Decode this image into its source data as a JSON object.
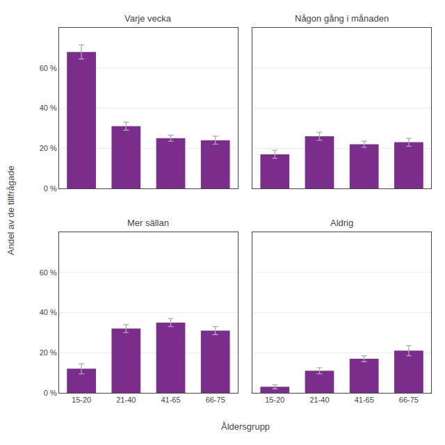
{
  "chart_data": [
    {
      "type": "bar",
      "title": "Varje vecka",
      "categories": [
        "15-20",
        "21-40",
        "41-65",
        "66-75"
      ],
      "values": [
        68,
        31,
        25,
        24
      ],
      "errors": [
        3.5,
        2.0,
        1.5,
        2.0
      ],
      "color": "#7B2D8B",
      "ylim": [
        0,
        80
      ],
      "yticks": [
        {
          "value": 0,
          "label": "0 %"
        },
        {
          "value": 20,
          "label": "20 %"
        },
        {
          "value": 40,
          "label": "40 %"
        },
        {
          "value": 60,
          "label": "60 %"
        }
      ],
      "grid": true,
      "tick_labels": "y"
    },
    {
      "type": "bar",
      "title": "Någon gång i månaden",
      "categories": [
        "15-20",
        "21-40",
        "41-65",
        "66-75"
      ],
      "values": [
        17,
        26,
        22,
        23
      ],
      "errors": [
        2.0,
        2.0,
        1.5,
        2.0
      ],
      "color": "#7B2D8B",
      "ylim": [
        0,
        80
      ],
      "yticks": [
        {
          "value": 0,
          "label": "0 %"
        },
        {
          "value": 20,
          "label": "20 %"
        },
        {
          "value": 40,
          "label": "40 %"
        },
        {
          "value": 60,
          "label": "60 %"
        }
      ],
      "grid": true,
      "tick_labels": false
    },
    {
      "type": "bar",
      "title": "Mer sällan",
      "categories": [
        "15-20",
        "21-40",
        "41-65",
        "66-75"
      ],
      "values": [
        12,
        32,
        35,
        31
      ],
      "errors": [
        2.5,
        2.0,
        2.0,
        2.0
      ],
      "color": "#7B2D8B",
      "ylim": [
        0,
        80
      ],
      "yticks": [
        {
          "value": 0,
          "label": "0 %"
        },
        {
          "value": 20,
          "label": "20 %"
        },
        {
          "value": 40,
          "label": "40 %"
        },
        {
          "value": 60,
          "label": "60 %"
        }
      ],
      "grid": true
    },
    {
      "type": "bar",
      "title": "Aldrig",
      "categories": [
        "15-20",
        "21-40",
        "41-65",
        "66-75"
      ],
      "values": [
        3,
        11,
        17,
        21
      ],
      "errors": [
        1.0,
        1.5,
        1.5,
        2.5
      ],
      "color": "#7B2D8B",
      "ylim": [
        0,
        80
      ],
      "yticks": [
        {
          "value": 0,
          "label": "0 %"
        },
        {
          "value": 20,
          "label": "20 %"
        },
        {
          "value": 40,
          "label": "40 %"
        },
        {
          "value": 60,
          "label": "60 %"
        }
      ],
      "grid": true,
      "tick_labels": "x"
    }
  ],
  "xlabel": "Åldersgrupp",
  "ylabel": "Andel av de tillfrågade"
}
